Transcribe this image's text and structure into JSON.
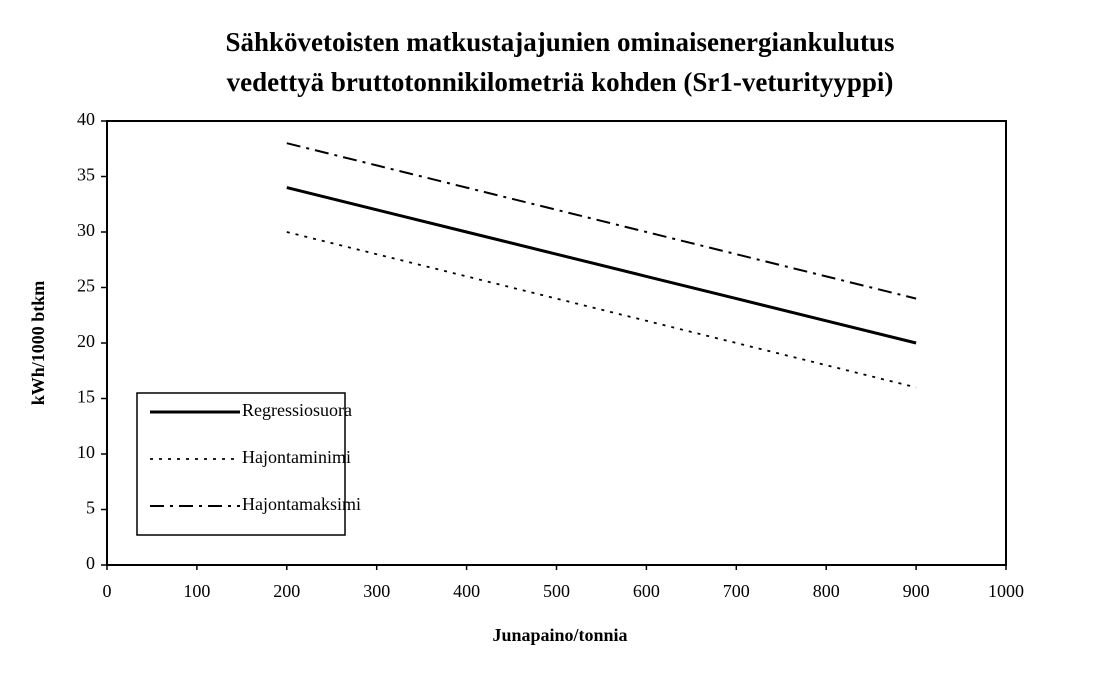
{
  "chart_data": {
    "type": "line",
    "title": [
      "Sähkövetoisten matkustajajunien ominaisenergiankulutus",
      "vedettyä bruttotonnikilometriä kohden (Sr1-veturityyppi)"
    ],
    "x_label": "Junapaino/tonnia",
    "y_label": "kWh/1000 btkm",
    "x": [
      200,
      300,
      400,
      500,
      600,
      700,
      800,
      900
    ],
    "series": [
      {
        "name": "Regressiosuora",
        "color": "#000000",
        "style": "solid",
        "values": [
          34,
          32,
          30,
          28,
          26,
          24,
          22,
          20
        ]
      },
      {
        "name": "Hajontaminimi",
        "color": "#000000",
        "style": "dotted",
        "values": [
          30,
          28,
          26,
          24,
          22,
          20,
          18,
          16
        ]
      },
      {
        "name": "Hajontamaksimi",
        "color": "#000000",
        "style": "dashdot",
        "values": [
          38,
          36,
          34,
          32,
          30,
          28,
          26,
          24
        ]
      }
    ],
    "xlim": [
      0,
      1000
    ],
    "xticks": [
      0,
      100,
      200,
      300,
      400,
      500,
      600,
      700,
      800,
      900,
      1000
    ],
    "ylim": [
      0,
      40
    ],
    "yticks": [
      0,
      5,
      10,
      15,
      20,
      25,
      30,
      35,
      40
    ],
    "grid": false,
    "legend": "lower left"
  }
}
